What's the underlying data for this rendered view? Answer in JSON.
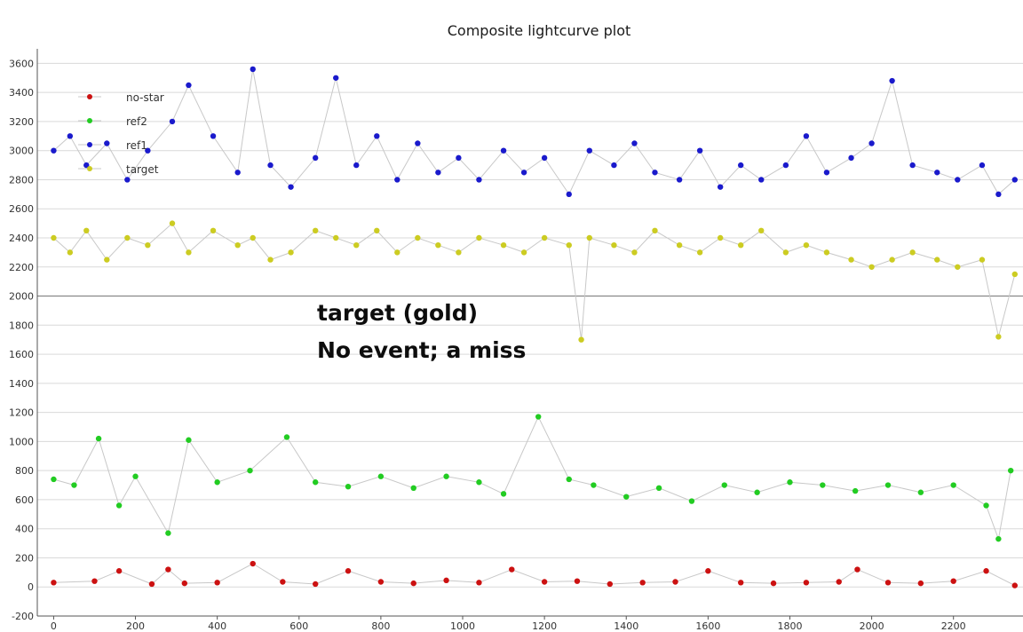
{
  "chart_data": {
    "type": "scatter",
    "title": "Composite lightcurve plot",
    "xlabel": "",
    "ylabel": "",
    "xlim": [
      -40,
      2370
    ],
    "ylim": [
      -200,
      3700
    ],
    "x_ticks": [
      0,
      200,
      400,
      600,
      800,
      1000,
      1200,
      1400,
      1600,
      1800,
      2000,
      2200
    ],
    "y_ticks": [
      -200,
      0,
      200,
      400,
      600,
      800,
      1000,
      1200,
      1400,
      1600,
      1800,
      2000,
      2200,
      2400,
      2600,
      2800,
      3000,
      3200,
      3400,
      3600
    ],
    "grid": "horizontal",
    "legend_position": "top-left",
    "colors": {
      "no-star": "#cc1111",
      "ref2": "#22cc22",
      "ref1": "#1a1acc",
      "target": "#cccc22",
      "connector": "#c8c8c8",
      "grid": "#d9d9d9",
      "axis": "#555555"
    },
    "series": [
      {
        "name": "no-star",
        "x": [
          0,
          100,
          160,
          240,
          280,
          320,
          400,
          487,
          560,
          640,
          720,
          800,
          880,
          960,
          1040,
          1120,
          1200,
          1280,
          1360,
          1440,
          1520,
          1600,
          1680,
          1760,
          1840,
          1920,
          1965,
          2040,
          2120,
          2200,
          2280,
          2350
        ],
        "values": [
          30,
          40,
          110,
          20,
          120,
          25,
          30,
          160,
          35,
          20,
          110,
          35,
          25,
          45,
          30,
          120,
          35,
          40,
          20,
          30,
          35,
          110,
          30,
          25,
          30,
          35,
          120,
          30,
          25,
          40,
          110,
          10
        ]
      },
      {
        "name": "ref2",
        "x": [
          0,
          50,
          110,
          160,
          200,
          280,
          330,
          400,
          480,
          570,
          640,
          720,
          800,
          880,
          960,
          1040,
          1100,
          1185,
          1260,
          1320,
          1400,
          1480,
          1560,
          1640,
          1720,
          1800,
          1880,
          1960,
          2040,
          2120,
          2200,
          2280,
          2310,
          2340
        ],
        "values": [
          740,
          700,
          1020,
          560,
          760,
          370,
          1010,
          720,
          800,
          1030,
          720,
          690,
          760,
          680,
          760,
          720,
          640,
          1170,
          740,
          700,
          620,
          680,
          590,
          700,
          650,
          720,
          700,
          660,
          700,
          650,
          700,
          560,
          330,
          800
        ]
      },
      {
        "name": "ref1",
        "x": [
          0,
          40,
          80,
          130,
          180,
          230,
          290,
          330,
          390,
          450,
          487,
          530,
          580,
          640,
          690,
          740,
          790,
          840,
          890,
          940,
          990,
          1040,
          1100,
          1150,
          1200,
          1260,
          1310,
          1370,
          1420,
          1470,
          1530,
          1580,
          1630,
          1680,
          1730,
          1790,
          1840,
          1890,
          1950,
          2000,
          2050,
          2100,
          2160,
          2210,
          2270,
          2310,
          2350
        ],
        "values": [
          3000,
          3100,
          2900,
          3050,
          2800,
          3000,
          3200,
          3450,
          3100,
          2850,
          3560,
          2900,
          2750,
          2950,
          3500,
          2900,
          3100,
          2800,
          3050,
          2850,
          2950,
          2800,
          3000,
          2850,
          2950,
          2700,
          3000,
          2900,
          3050,
          2850,
          2800,
          3000,
          2750,
          2900,
          2800,
          2900,
          3100,
          2850,
          2950,
          3050,
          3480,
          2900,
          2850,
          2800,
          2900,
          2700,
          2800
        ]
      },
      {
        "name": "target",
        "x": [
          0,
          40,
          80,
          130,
          180,
          230,
          290,
          330,
          390,
          450,
          487,
          530,
          580,
          640,
          690,
          740,
          790,
          840,
          890,
          940,
          990,
          1040,
          1100,
          1150,
          1200,
          1260,
          1290,
          1310,
          1370,
          1420,
          1470,
          1530,
          1580,
          1630,
          1680,
          1730,
          1790,
          1840,
          1890,
          1950,
          2000,
          2050,
          2100,
          2160,
          2210,
          2270,
          2310,
          2350
        ],
        "values": [
          2400,
          2300,
          2450,
          2250,
          2400,
          2350,
          2500,
          2300,
          2450,
          2350,
          2400,
          2250,
          2300,
          2450,
          2400,
          2350,
          2450,
          2300,
          2400,
          2350,
          2300,
          2400,
          2350,
          2300,
          2400,
          2350,
          1700,
          2400,
          2350,
          2300,
          2450,
          2350,
          2300,
          2400,
          2350,
          2450,
          2300,
          2350,
          2300,
          2250,
          2200,
          2250,
          2300,
          2250,
          2200,
          2250,
          1720,
          2150
        ]
      }
    ],
    "legend": [
      "no-star",
      "ref2",
      "ref1",
      "target"
    ],
    "annotations": [
      "target (gold)",
      "No event; a miss"
    ]
  }
}
